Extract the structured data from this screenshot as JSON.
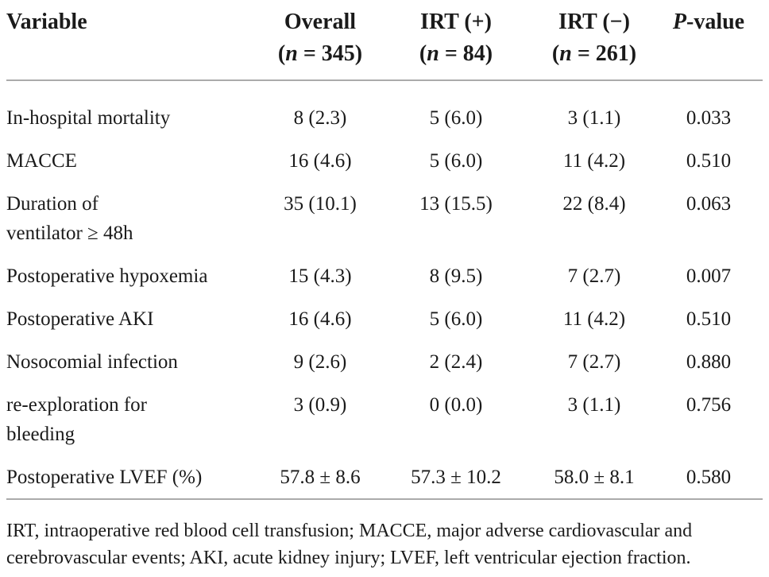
{
  "colors": {
    "text": "#1a1a1a",
    "rule": "#ababab",
    "background": "#ffffff"
  },
  "table": {
    "header": {
      "variable": "Variable",
      "overall": {
        "title": "Overall",
        "n_open": "(",
        "n_italic": "n",
        "n_rest": " = 345)"
      },
      "irt_pos": {
        "title": "IRT (+)",
        "n_open": "(",
        "n_italic": "n",
        "n_rest": " = 84)"
      },
      "irt_neg": {
        "title": "IRT (−)",
        "n_open": "(",
        "n_italic": "n",
        "n_rest": " = 261)"
      },
      "pvalue": {
        "italic": "P",
        "rest": "-value"
      }
    },
    "rows": [
      {
        "variable_line1": "In-hospital mortality",
        "overall": "8 (2.3)",
        "irt_pos": "5 (6.0)",
        "irt_neg": "3 (1.1)",
        "p_value": "0.033"
      },
      {
        "variable_line1": "MACCE",
        "overall": "16 (4.6)",
        "irt_pos": "5 (6.0)",
        "irt_neg": "11 (4.2)",
        "p_value": "0.510"
      },
      {
        "variable_line1": "Duration of",
        "variable_line2": "ventilator ≥ 48h",
        "overall": "35 (10.1)",
        "irt_pos": "13 (15.5)",
        "irt_neg": "22 (8.4)",
        "p_value": "0.063"
      },
      {
        "variable_line1": "Postoperative hypoxemia",
        "overall": "15 (4.3)",
        "irt_pos": "8 (9.5)",
        "irt_neg": "7 (2.7)",
        "p_value": "0.007"
      },
      {
        "variable_line1": "Postoperative AKI",
        "overall": "16 (4.6)",
        "irt_pos": "5 (6.0)",
        "irt_neg": "11 (4.2)",
        "p_value": "0.510"
      },
      {
        "variable_line1": "Nosocomial infection",
        "overall": "9 (2.6)",
        "irt_pos": "2 (2.4)",
        "irt_neg": "7 (2.7)",
        "p_value": "0.880"
      },
      {
        "variable_line1": "re-exploration for",
        "variable_line2": "bleeding",
        "overall": "3 (0.9)",
        "irt_pos": "0 (0.0)",
        "irt_neg": "3 (1.1)",
        "p_value": "0.756"
      },
      {
        "variable_line1": "Postoperative LVEF (%)",
        "overall": "57.8 ± 8.6",
        "irt_pos": "57.3 ± 10.2",
        "irt_neg": "58.0 ± 8.1",
        "p_value": "0.580"
      }
    ],
    "footnote_line1": "IRT, intraoperative red blood cell transfusion; MACCE, major adverse cardiovascular and",
    "footnote_line2": "cerebrovascular events; AKI, acute kidney injury; LVEF, left ventricular ejection fraction."
  }
}
